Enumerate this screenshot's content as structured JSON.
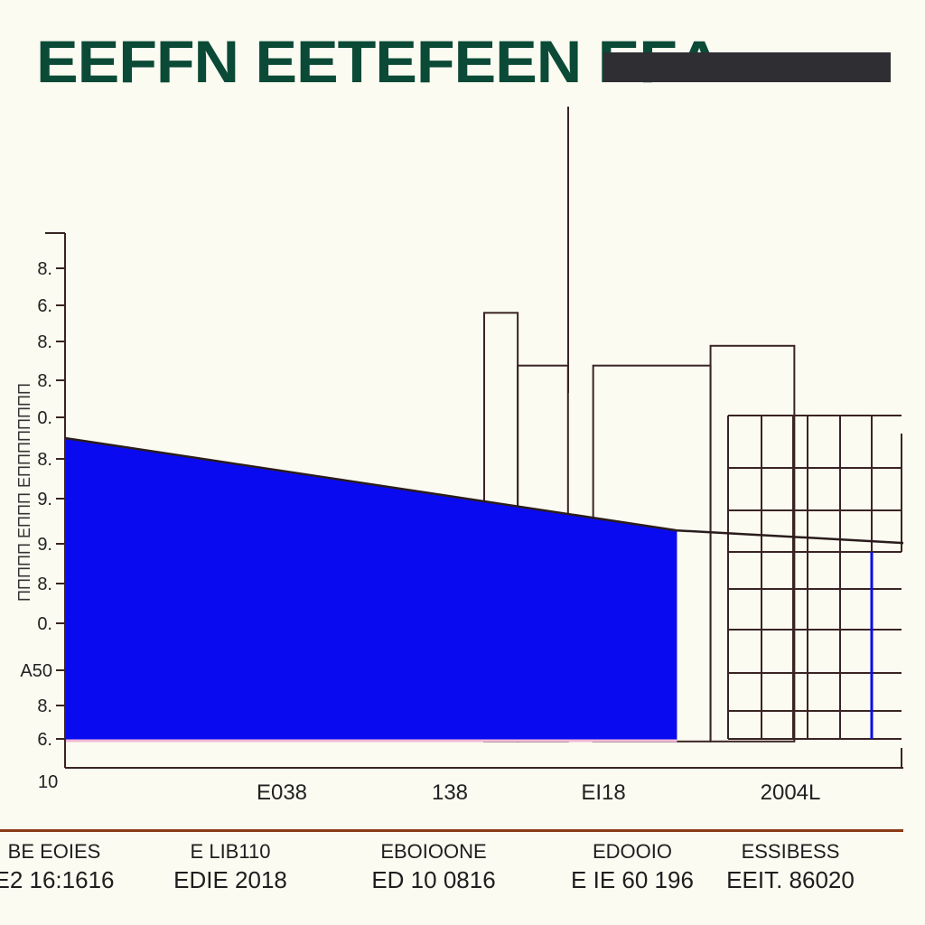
{
  "title": "EEFFN EETEFEEN EFΔ",
  "chart_data": {
    "type": "area",
    "ylabel": "ΠΠΠΠΠ ΕΠΠΠ ΕΠΠΠΠΠΠΠΠ",
    "ytick_labels": [
      "8.",
      "6.",
      "8.",
      "8.",
      "0.",
      "8.",
      "9.",
      "9.",
      "8.",
      "0.",
      "A50",
      "8.",
      "6."
    ],
    "bottom_label": "10",
    "x_labels": [
      "E038",
      "138",
      "EI18",
      "2004L"
    ],
    "area": {
      "color": "#0a0af0",
      "x": [
        0,
        0.73
      ],
      "y": [
        0.5,
        0.36
      ]
    },
    "line": {
      "x": [
        0,
        0.73,
        1.0
      ],
      "y": [
        0.5,
        0.36,
        0.341
      ]
    },
    "bars": [
      {
        "x0": 0.5,
        "x1": 0.54,
        "top": 0.69
      },
      {
        "x0": 0.54,
        "x1": 0.6,
        "top": 0.61
      },
      {
        "x0": 0.63,
        "x1": 0.77,
        "top": 0.61
      },
      {
        "x0": 0.77,
        "x1": 0.87,
        "top": 0.64
      }
    ]
  },
  "footer": [
    {
      "line1": "BE EOIES",
      "line2": "E2 16:1616"
    },
    {
      "line1": "E LIB110",
      "line2": "EDIE 2018"
    },
    {
      "line1": "EBOIOONE",
      "line2": "ED 10 0816"
    },
    {
      "line1": "EDOOIO",
      "line2": "E IE 60 196"
    },
    {
      "line1": "ESSIBESS",
      "line2": "EEIT. 86020"
    }
  ]
}
